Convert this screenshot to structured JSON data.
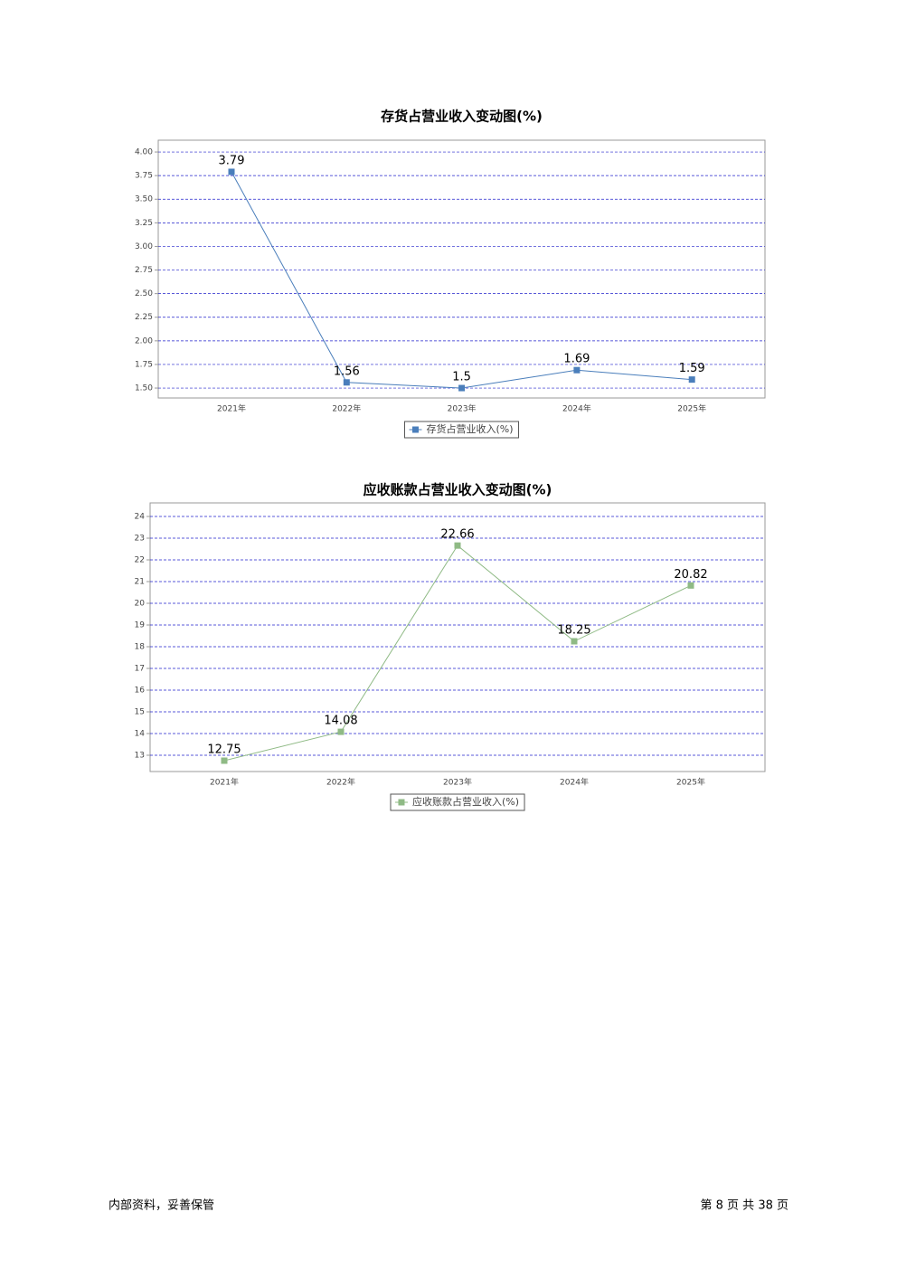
{
  "chart_data": [
    {
      "type": "line",
      "title": "存货占营业收入变动图(%)",
      "categories": [
        "2021年",
        "2022年",
        "2023年",
        "2024年",
        "2025年"
      ],
      "series": [
        {
          "name": "存货占营业收入(%)",
          "color": "#4a7ebb",
          "values": [
            3.79,
            1.56,
            1.5,
            1.69,
            1.59
          ]
        }
      ],
      "ylim": [
        1.395,
        4.125
      ],
      "yticks": [
        {
          "value": 1.5,
          "label": "1.50"
        },
        {
          "value": 1.75,
          "label": "1.75"
        },
        {
          "value": 2,
          "label": "2.00"
        },
        {
          "value": 2.25,
          "label": "2.25"
        },
        {
          "value": 2.5,
          "label": "2.50"
        },
        {
          "value": 2.75,
          "label": "2.75"
        },
        {
          "value": 3,
          "label": "3.00"
        },
        {
          "value": 3.25,
          "label": "3.25"
        },
        {
          "value": 3.5,
          "label": "3.50"
        },
        {
          "value": 3.75,
          "label": "3.75"
        },
        {
          "value": 4,
          "label": "4.00"
        }
      ],
      "grid": true
    },
    {
      "type": "line",
      "title": "应收账款占营业收入变动图(%)",
      "categories": [
        "2021年",
        "2022年",
        "2023年",
        "2024年",
        "2025年"
      ],
      "series": [
        {
          "name": "应收账款占营业收入(%)",
          "color": "#8fba85",
          "values": [
            12.75,
            14.08,
            22.66,
            18.25,
            20.82
          ]
        }
      ],
      "ylim": [
        12.25,
        24.625
      ],
      "yticks": [
        13,
        14,
        15,
        16,
        17,
        18,
        19,
        20,
        21,
        22,
        23,
        24
      ],
      "grid": true
    }
  ],
  "footer": {
    "left": "内部资料，妥善保管",
    "right": "第 8 页 共 38 页"
  }
}
